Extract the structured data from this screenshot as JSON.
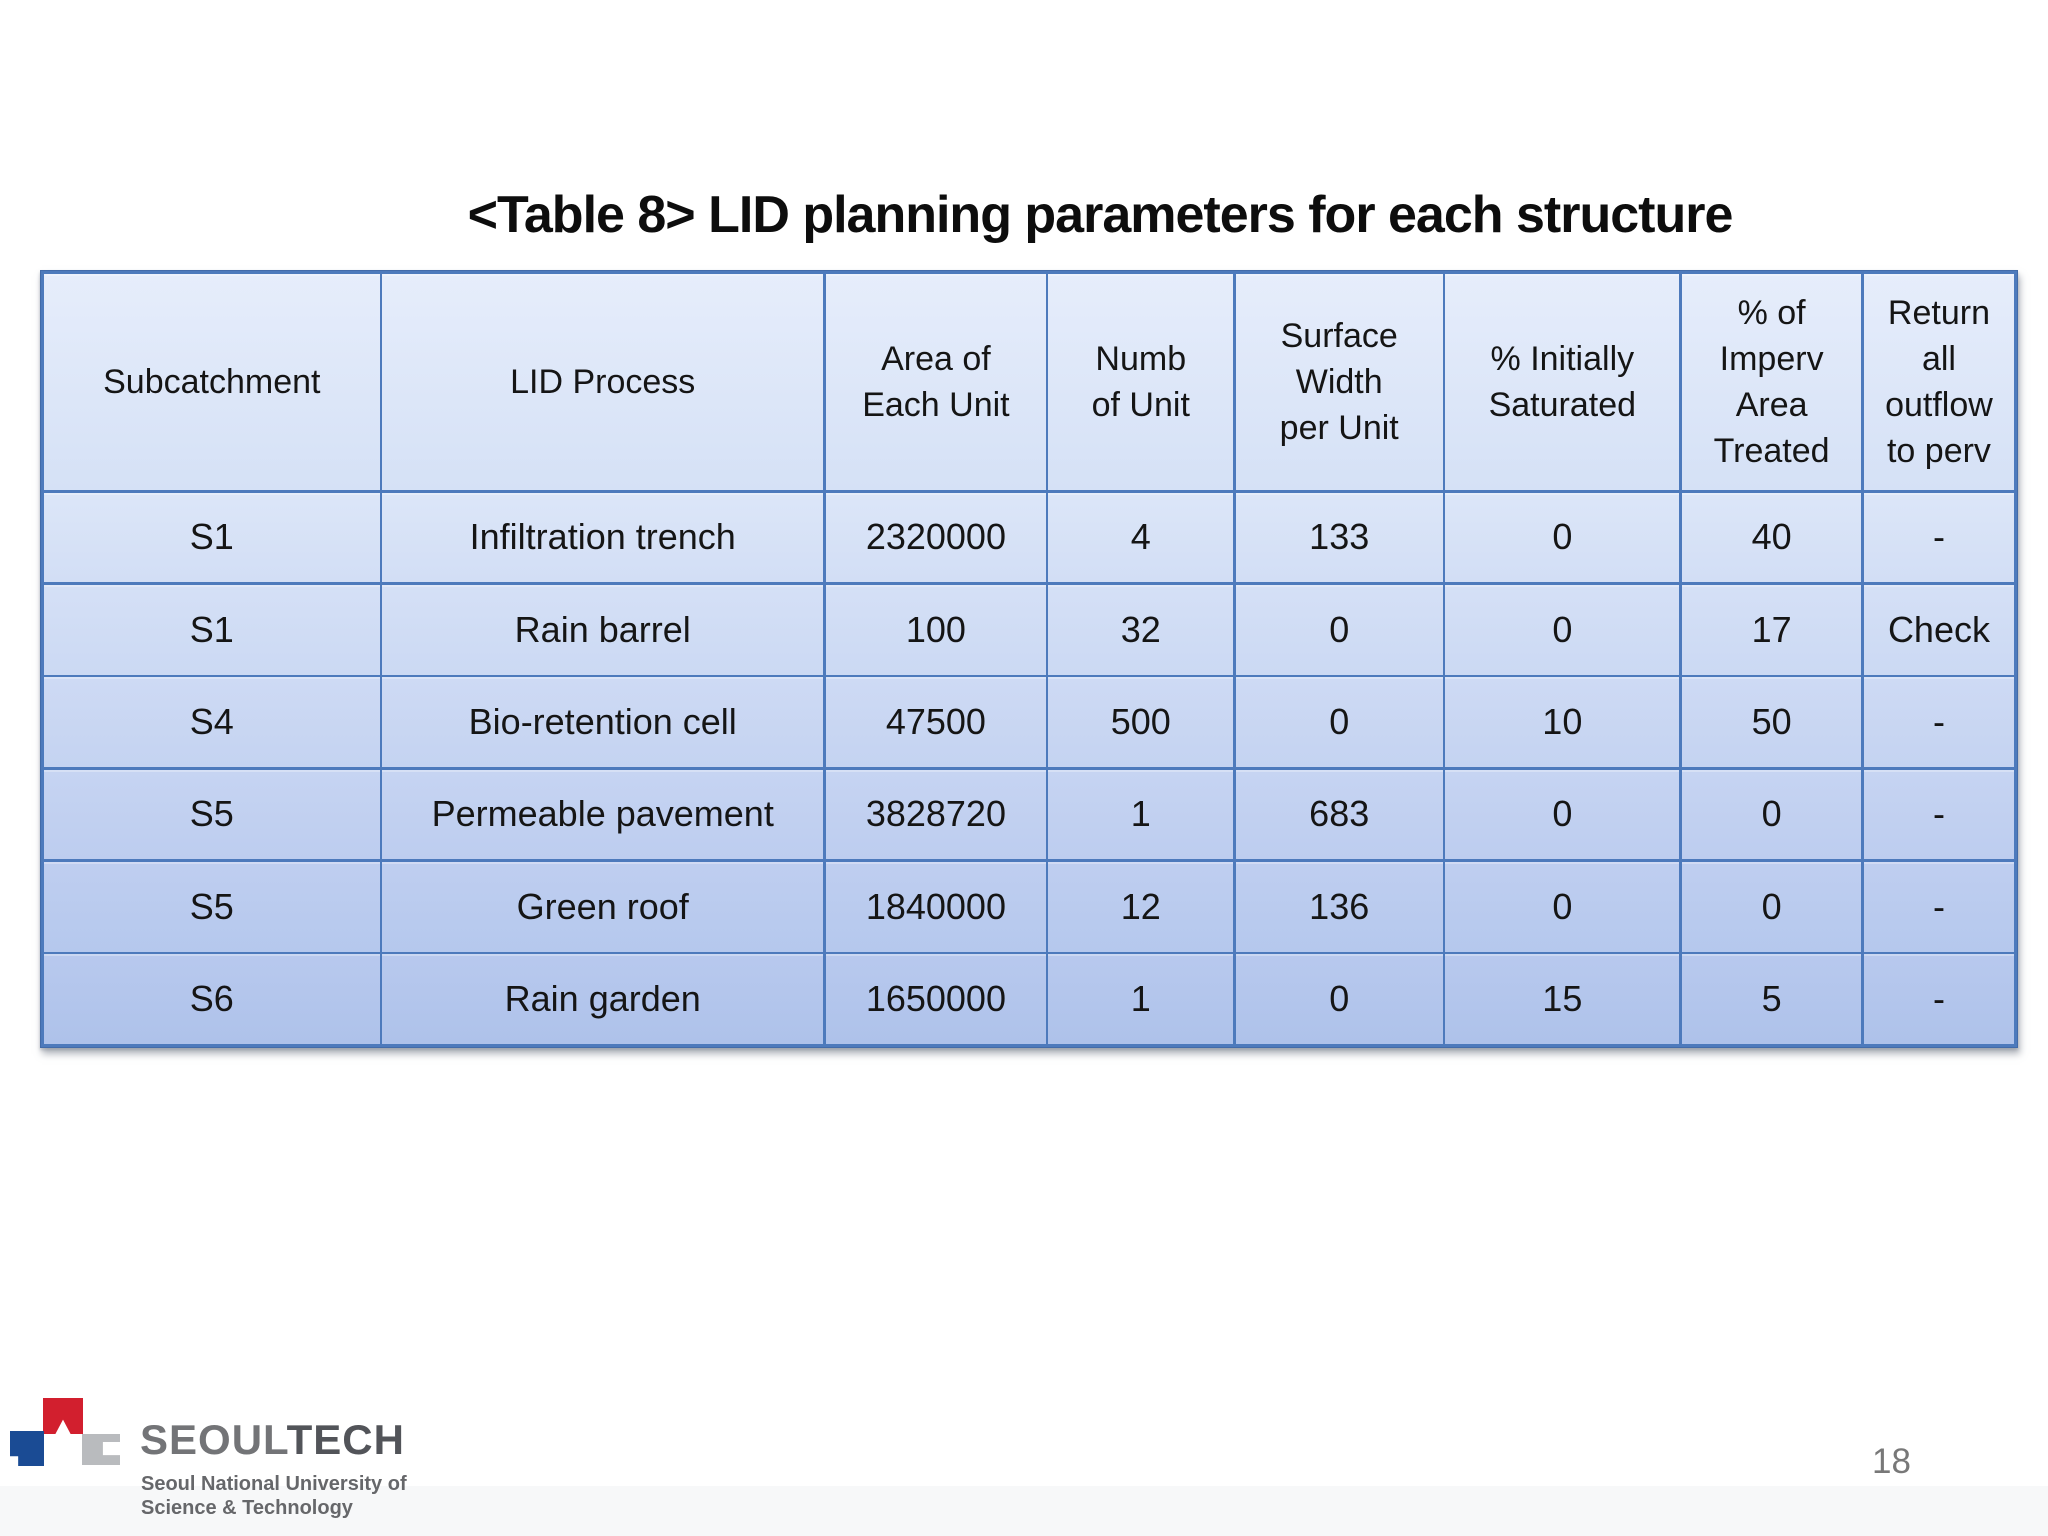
{
  "slide": {
    "title": "<Table 8> LID planning parameters for each structure",
    "page_number": "18"
  },
  "table": {
    "headers": [
      "Subcatchment",
      "LID Process",
      "Area of\nEach Unit",
      "Numb\nof Unit",
      "Surface\nWidth\nper Unit",
      "% Initially\nSaturated",
      "% of\nImperv\nArea\nTreated",
      "Return\nall\noutflow\nto perv"
    ],
    "rows": [
      [
        "S1",
        "Infiltration trench",
        "2320000",
        "4",
        "133",
        "0",
        "40",
        "-"
      ],
      [
        "S1",
        "Rain barrel",
        "100",
        "32",
        "0",
        "0",
        "17",
        "Check"
      ],
      [
        "S4",
        "Bio-retention cell",
        "47500",
        "500",
        "0",
        "10",
        "50",
        "-"
      ],
      [
        "S5",
        "Permeable pavement",
        "3828720",
        "1",
        "683",
        "0",
        "0",
        "-"
      ],
      [
        "S5",
        "Green roof",
        "1840000",
        "12",
        "136",
        "0",
        "0",
        "-"
      ],
      [
        "S6",
        "Rain garden",
        "1650000",
        "1",
        "0",
        "15",
        "5",
        "-"
      ]
    ]
  },
  "footer": {
    "logo": {
      "word_primary": "SEOUL",
      "word_secondary": "TECH",
      "subtitle_line1": "Seoul National University of",
      "subtitle_line2": "Science & Technology"
    }
  },
  "colors": {
    "table_border": "#4d7abc",
    "table_top_fill": "#e6edfb",
    "table_bottom_fill": "#aec2ea",
    "logo_red": "#d21f2e",
    "logo_blue": "#1a4b94",
    "logo_gray": "#b9bbbe",
    "page_number_gray": "#787878"
  }
}
